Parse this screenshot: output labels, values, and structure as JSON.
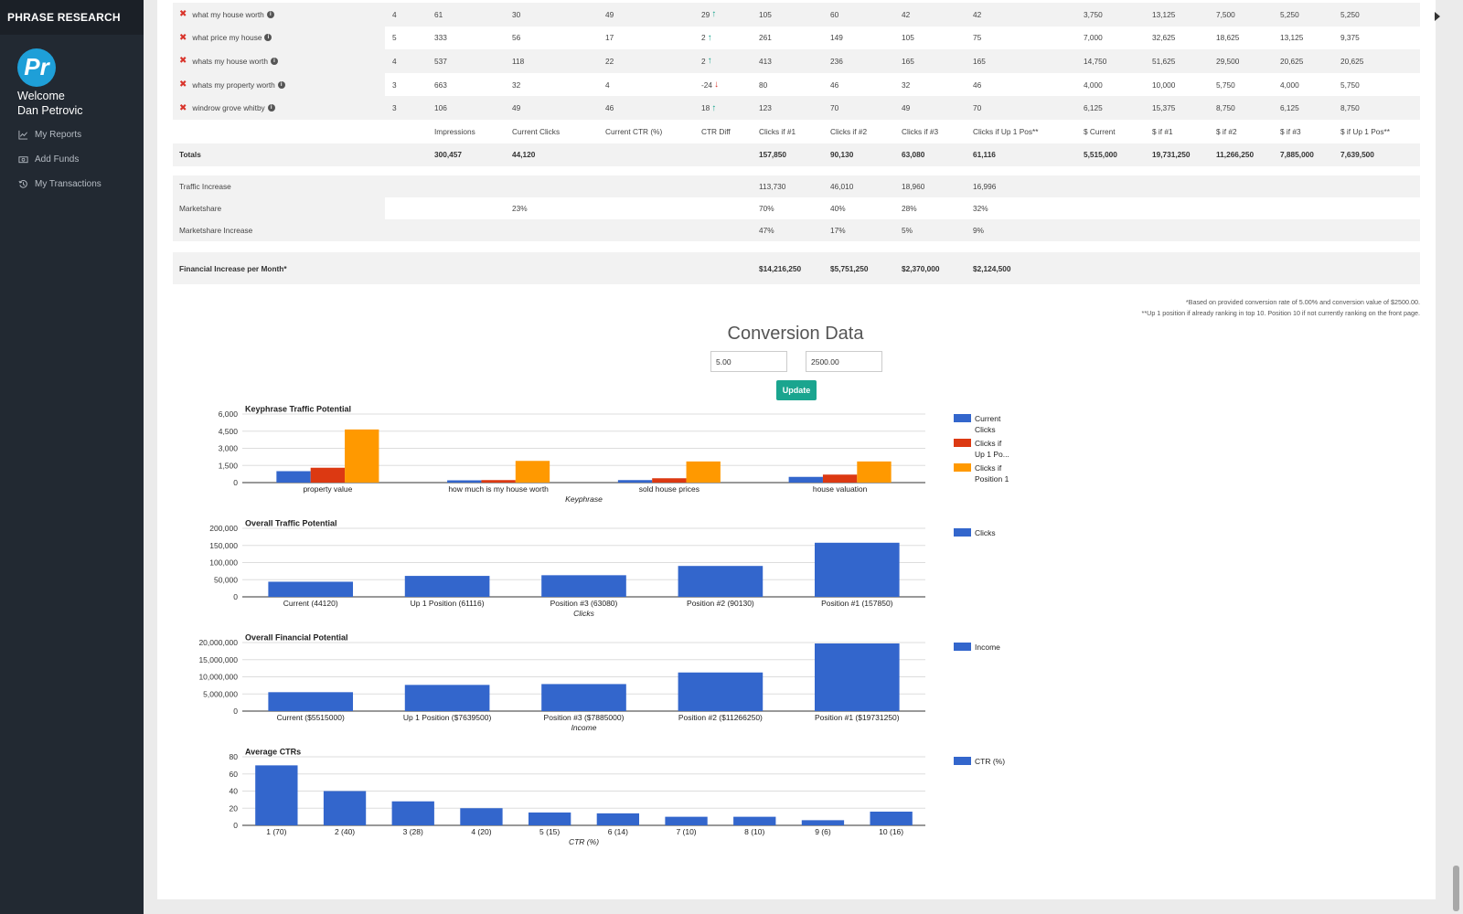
{
  "sidebar": {
    "brand": "PHRASE RESEARCH",
    "avatar_text": "Pr",
    "welcome": "Welcome",
    "user_name": "Dan Petrovic",
    "nav": [
      {
        "label": "My Reports",
        "icon": "line-chart-icon"
      },
      {
        "label": "Add Funds",
        "icon": "money-icon"
      },
      {
        "label": "My Transactions",
        "icon": "history-icon"
      }
    ]
  },
  "table": {
    "rows": [
      {
        "phrase": "what my house worth",
        "pos": "4",
        "imp": "61",
        "clicks": "30",
        "ctr": "49",
        "diff": "29",
        "dir": "up",
        "c1": "105",
        "c2": "60",
        "c3": "42",
        "cup": "42",
        "d_cur": "3,750",
        "d1": "13,125",
        "d2": "7,500",
        "d3": "5,250",
        "dup": "5,250"
      },
      {
        "phrase": "what price my house",
        "pos": "5",
        "imp": "333",
        "clicks": "56",
        "ctr": "17",
        "diff": "2",
        "dir": "up",
        "c1": "261",
        "c2": "149",
        "c3": "105",
        "cup": "75",
        "d_cur": "7,000",
        "d1": "32,625",
        "d2": "18,625",
        "d3": "13,125",
        "dup": "9,375"
      },
      {
        "phrase": "whats my house worth",
        "pos": "4",
        "imp": "537",
        "clicks": "118",
        "ctr": "22",
        "diff": "2",
        "dir": "up",
        "c1": "413",
        "c2": "236",
        "c3": "165",
        "cup": "165",
        "d_cur": "14,750",
        "d1": "51,625",
        "d2": "29,500",
        "d3": "20,625",
        "dup": "20,625"
      },
      {
        "phrase": "whats my property worth",
        "pos": "3",
        "imp": "663",
        "clicks": "32",
        "ctr": "4",
        "diff": "-24",
        "dir": "down",
        "c1": "80",
        "c2": "46",
        "c3": "32",
        "cup": "46",
        "d_cur": "4,000",
        "d1": "10,000",
        "d2": "5,750",
        "d3": "4,000",
        "dup": "5,750"
      },
      {
        "phrase": "windrow grove whitby",
        "pos": "3",
        "imp": "106",
        "clicks": "49",
        "ctr": "46",
        "diff": "18",
        "dir": "up",
        "c1": "123",
        "c2": "70",
        "c3": "49",
        "cup": "70",
        "d_cur": "6,125",
        "d1": "15,375",
        "d2": "8,750",
        "d3": "6,125",
        "dup": "8,750"
      }
    ],
    "headers": [
      "Impressions",
      "Current Clicks",
      "Current CTR (%)",
      "CTR Diff",
      "Clicks if #1",
      "Clicks if #2",
      "Clicks if #3",
      "Clicks if Up 1 Pos**",
      "$ Current",
      "$ if #1",
      "$ if #2",
      "$ if #3",
      "$ if Up 1 Pos**"
    ],
    "totals": {
      "label": "Totals",
      "imp": "300,457",
      "clicks": "44,120",
      "c1": "157,850",
      "c2": "90,130",
      "c3": "63,080",
      "cup": "61,116",
      "d_cur": "5,515,000",
      "d1": "19,731,250",
      "d2": "11,266,250",
      "d3": "7,885,000",
      "dup": "7,639,500"
    },
    "traffic_increase": {
      "label": "Traffic Increase",
      "c1": "113,730",
      "c2": "46,010",
      "c3": "18,960",
      "cup": "16,996"
    },
    "marketshare": {
      "label": "Marketshare",
      "clicks": "23%",
      "c1": "70%",
      "c2": "40%",
      "c3": "28%",
      "cup": "32%"
    },
    "marketshare_increase": {
      "label": "Marketshare Increase",
      "c1": "47%",
      "c2": "17%",
      "c3": "5%",
      "cup": "9%"
    },
    "financial": {
      "label": "Financial Increase per Month*",
      "c1": "$14,216,250",
      "c2": "$5,751,250",
      "c3": "$2,370,000",
      "cup": "$2,124,500"
    }
  },
  "footnotes": [
    "*Based on provided conversion rate of 5.00% and conversion value of $2500.00.",
    "**Up 1 position if already ranking in top 10. Position 10 if not currently ranking on the front page."
  ],
  "conversion": {
    "title": "Conversion Data",
    "rate_value": "5.00",
    "value_value": "2500.00",
    "update_label": "Update"
  },
  "colors": {
    "blue": "#3366cc",
    "red": "#dc3912",
    "orange": "#ff9900",
    "teal": "#1aa58f"
  },
  "chart_data": [
    {
      "type": "bar",
      "title": "Keyphrase Traffic Potential",
      "xlabel": "Keyphrase",
      "categories": [
        "property value",
        "how much is my house worth",
        "sold house prices",
        "house valuation"
      ],
      "series": [
        {
          "name": "Current Clicks",
          "legend": [
            "Current",
            "Clicks"
          ],
          "values": [
            1000,
            200,
            220,
            500
          ]
        },
        {
          "name": "Clicks if Up 1 Po...",
          "legend": [
            "Clicks if",
            "Up 1 Po..."
          ],
          "values": [
            1300,
            220,
            380,
            700
          ]
        },
        {
          "name": "Clicks if Position 1",
          "legend": [
            "Clicks if",
            "Position 1"
          ],
          "values": [
            4650,
            1900,
            1850,
            1850
          ]
        }
      ],
      "yticks": [
        0,
        1500,
        3000,
        4500,
        6000
      ],
      "ytick_labels": [
        "0",
        "1,500",
        "3,000",
        "4,500",
        "6,000"
      ],
      "ylim": [
        0,
        6000
      ]
    },
    {
      "type": "bar",
      "title": "Overall Traffic Potential",
      "xlabel": "Clicks",
      "categories": [
        "Current (44120)",
        "Up 1 Position (61116)",
        "Position #3 (63080)",
        "Position #2 (90130)",
        "Position #1 (157850)"
      ],
      "series": [
        {
          "name": "Clicks",
          "legend": [
            "Clicks"
          ],
          "values": [
            44120,
            61116,
            63080,
            90130,
            157850
          ]
        }
      ],
      "yticks": [
        0,
        50000,
        100000,
        150000,
        200000
      ],
      "ytick_labels": [
        "0",
        "50,000",
        "100,000",
        "150,000",
        "200,000"
      ],
      "ylim": [
        0,
        200000
      ]
    },
    {
      "type": "bar",
      "title": "Overall Financial Potential",
      "xlabel": "Income",
      "categories": [
        "Current ($5515000)",
        "Up 1 Position ($7639500)",
        "Position #3 ($7885000)",
        "Position #2 ($11266250)",
        "Position #1 ($19731250)"
      ],
      "series": [
        {
          "name": "Income",
          "legend": [
            "Income"
          ],
          "values": [
            5515000,
            7639500,
            7885000,
            11266250,
            19731250
          ]
        }
      ],
      "yticks": [
        0,
        5000000,
        10000000,
        15000000,
        20000000
      ],
      "ytick_labels": [
        "0",
        "5,000,000",
        "10,000,000",
        "15,000,000",
        "20,000,000"
      ],
      "ylim": [
        0,
        20000000
      ]
    },
    {
      "type": "bar",
      "title": "Average CTRs",
      "xlabel": "CTR (%)",
      "categories": [
        "1 (70)",
        "2 (40)",
        "3 (28)",
        "4 (20)",
        "5 (15)",
        "6 (14)",
        "7 (10)",
        "8 (10)",
        "9 (6)",
        "10 (16)"
      ],
      "series": [
        {
          "name": "CTR (%)",
          "legend": [
            "CTR (%)"
          ],
          "values": [
            70,
            40,
            28,
            20,
            15,
            14,
            10,
            10,
            6,
            16
          ]
        }
      ],
      "yticks": [
        0,
        20,
        40,
        60,
        80
      ],
      "ytick_labels": [
        "0",
        "20",
        "40",
        "60",
        "80"
      ],
      "ylim": [
        0,
        80
      ]
    }
  ]
}
